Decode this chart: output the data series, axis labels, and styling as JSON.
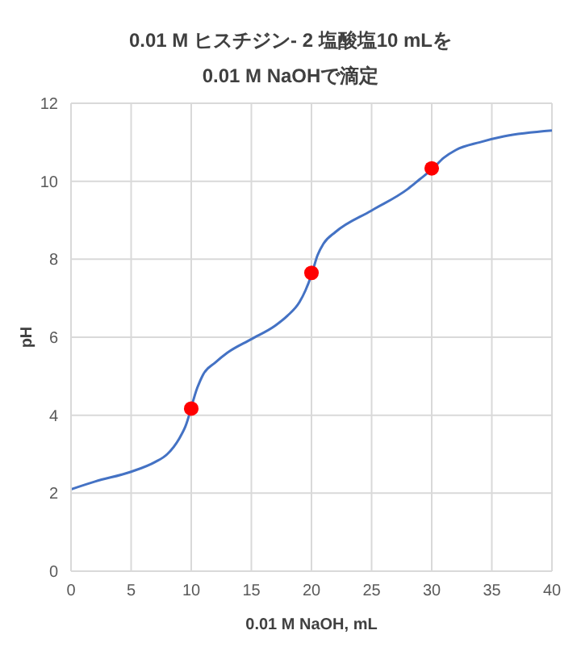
{
  "chart_data": {
    "type": "line",
    "title": "0.01 M ヒスチジン- 2 塩酸塩10 mLを",
    "subtitle": "0.01 M NaOHで滴定",
    "xlabel": "0.01 M NaOH, mL",
    "ylabel": "pH",
    "series": [
      {
        "marker": "none",
        "color": "#4472c4",
        "x": [
          0,
          2,
          5,
          7,
          8,
          9,
          9.5,
          10.5,
          11,
          12,
          13,
          15,
          17,
          18,
          19,
          19.5,
          20,
          20.5,
          21,
          22,
          25,
          28,
          29,
          30,
          31,
          32,
          34,
          36,
          40
        ],
        "values": [
          2.1,
          2.3,
          2.55,
          2.8,
          3.0,
          3.4,
          3.7,
          4.7,
          5.05,
          5.35,
          5.6,
          5.95,
          6.3,
          6.55,
          6.9,
          7.2,
          7.6,
          8.1,
          8.4,
          8.7,
          9.25,
          9.8,
          10.05,
          10.3,
          10.6,
          10.8,
          11.0,
          11.15,
          11.3
        ]
      },
      {
        "type": "scatter",
        "marker": "circle",
        "color": "#ff0000",
        "x": [
          10,
          20,
          30
        ],
        "values": [
          4.17,
          7.65,
          10.33
        ]
      }
    ],
    "xlim": [
      0,
      40
    ],
    "xticks": [
      0,
      5,
      10,
      15,
      20,
      25,
      30,
      35,
      40
    ],
    "ylim": [
      0,
      12
    ],
    "yticks": [
      0,
      2,
      4,
      6,
      8,
      10,
      12
    ],
    "grid": true,
    "legend": false
  }
}
